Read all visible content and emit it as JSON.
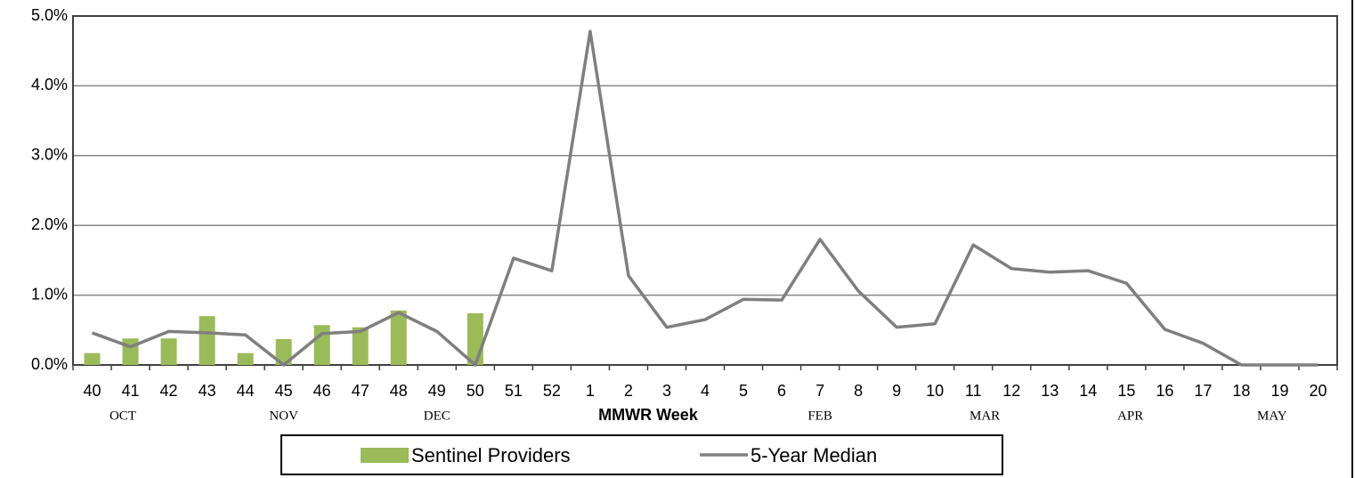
{
  "chart_data": {
    "type": "bar-line",
    "x_label": "MMWR Week",
    "categories": [
      "40",
      "41",
      "42",
      "43",
      "44",
      "45",
      "46",
      "47",
      "48",
      "49",
      "50",
      "51",
      "52",
      "1",
      "2",
      "3",
      "4",
      "5",
      "6",
      "7",
      "8",
      "9",
      "10",
      "11",
      "12",
      "13",
      "14",
      "15",
      "16",
      "17",
      "18",
      "19",
      "20"
    ],
    "month_labels": [
      "OCT",
      "NOV",
      "DEC",
      "FEB",
      "MAR",
      "APR",
      "MAY"
    ],
    "series": [
      {
        "name": "Sentinel Providers",
        "type": "bar",
        "color": "#9bbb59",
        "values": [
          0.17,
          0.38,
          0.38,
          0.7,
          0.17,
          0.37,
          0.57,
          0.54,
          0.78,
          null,
          0.74,
          null,
          null,
          null,
          null,
          null,
          null,
          null,
          null,
          null,
          null,
          null,
          null,
          null,
          null,
          null,
          null,
          null,
          null,
          null,
          null,
          null,
          null
        ]
      },
      {
        "name": "5-Year Median",
        "type": "line",
        "color": "#7f7f7f",
        "values": [
          0.46,
          0.26,
          0.48,
          0.46,
          0.43,
          0.0,
          0.45,
          0.48,
          0.75,
          0.48,
          0.0,
          1.53,
          1.35,
          4.78,
          1.28,
          0.54,
          0.65,
          0.94,
          0.93,
          1.8,
          1.06,
          0.54,
          0.59,
          1.72,
          1.38,
          1.33,
          1.35,
          1.17,
          0.51,
          0.31,
          0,
          0,
          0
        ]
      }
    ],
    "ylim": [
      0,
      5
    ],
    "yticks": [
      {
        "value": 0,
        "label": "0.0%"
      },
      {
        "value": 1,
        "label": "1.0%"
      },
      {
        "value": 2,
        "label": "2.0%"
      },
      {
        "value": 3,
        "label": "3.0%"
      },
      {
        "value": 4,
        "label": "4.0%"
      },
      {
        "value": 5,
        "label": "5.0%"
      }
    ],
    "grid": true,
    "legend": "bottom"
  }
}
